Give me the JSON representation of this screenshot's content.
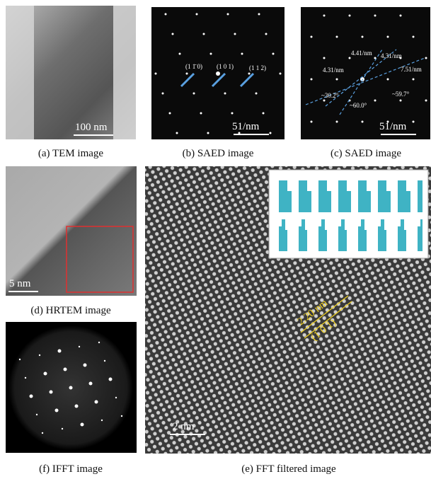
{
  "panels": {
    "a": {
      "caption": "(a) TEM image",
      "scale": "100 nm"
    },
    "b": {
      "caption": "(b) SAED image",
      "scale": "51/nm",
      "labels": [
        "(1 1̄ 0)",
        "(1 0 1)",
        "(1 1 2)"
      ]
    },
    "c": {
      "caption": "(c) SAED image",
      "scale": "51/nm",
      "labels": [
        "4.41/nm",
        "4.31/nm",
        "4.31/nm",
        "7.51/nm",
        "~30.2°",
        "~60.0°",
        "~59.7°"
      ]
    },
    "d": {
      "caption": "(d) HRTEM image",
      "scale": "5 nm"
    },
    "e": {
      "caption": "(e) FFT filtered image",
      "scale": "2 nm",
      "labels": [
        "2.20 nm",
        "(1 0 1)"
      ]
    },
    "f": {
      "caption": "(f) IFFT image"
    }
  }
}
